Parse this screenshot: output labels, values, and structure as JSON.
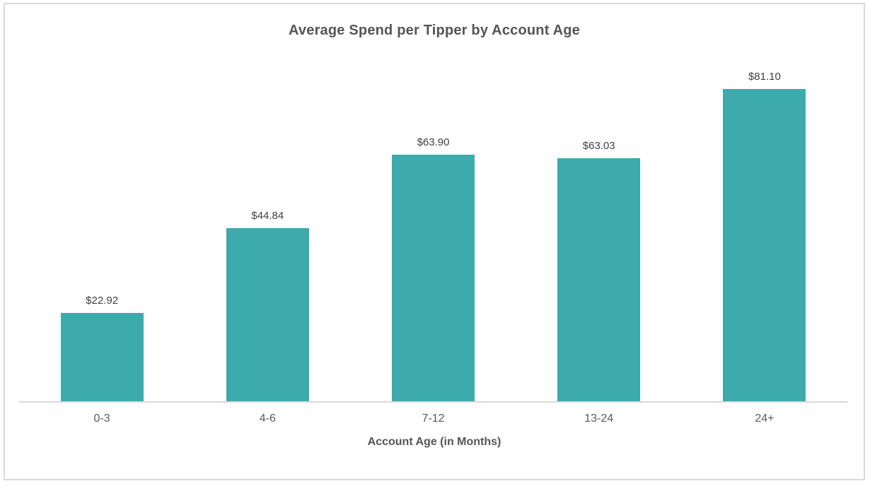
{
  "chart_data": {
    "type": "bar",
    "title": "Average Spend per Tipper by Account Age",
    "categories": [
      "0-3",
      "4-6",
      "7-12",
      "13-24",
      "24+"
    ],
    "values": [
      22.92,
      44.84,
      63.9,
      63.03,
      81.1
    ],
    "data_labels": [
      "$22.92",
      "$44.84",
      "$63.90",
      "$63.03",
      "$81.10"
    ],
    "xlabel": "Account Age (in Months)",
    "ylabel": "",
    "ylim": [
      0,
      90
    ],
    "grid": false,
    "legend": false,
    "bar_color": "#3DAAAB",
    "axis_line_color": "#D9D9D9",
    "title_color": "#555555",
    "label_color": "#3F3F3F",
    "tick_color": "#595959"
  }
}
